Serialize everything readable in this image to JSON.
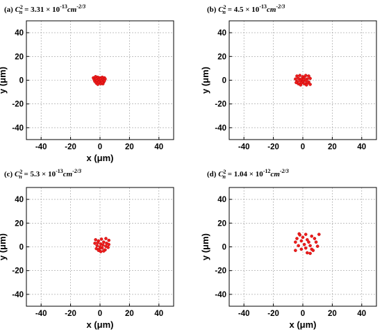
{
  "chart_data": [
    {
      "type": "scatter",
      "title_prefix": "(a)",
      "title_coef": "3.31",
      "title_exp": "-13",
      "title_unit_exp": "-2/3",
      "xlabel": "x (μm)",
      "ylabel": "y (μm)",
      "xlim": [
        -50,
        50
      ],
      "ylim": [
        -50,
        50
      ],
      "xticks": [
        -40,
        -20,
        0,
        20,
        40
      ],
      "yticks": [
        40,
        20,
        0,
        -20,
        -40
      ],
      "grid": true,
      "points": [
        [
          -4.5,
          2
        ],
        [
          -3,
          3
        ],
        [
          -1.5,
          2.5
        ],
        [
          0,
          2
        ],
        [
          1.5,
          2.5
        ],
        [
          3,
          2
        ],
        [
          -4,
          0.5
        ],
        [
          -2.5,
          1
        ],
        [
          -1,
          0.5
        ],
        [
          0.5,
          1
        ],
        [
          2,
          0.5
        ],
        [
          3.5,
          1
        ],
        [
          -3.5,
          -1
        ],
        [
          -2,
          -0.5
        ],
        [
          -0.5,
          -1
        ],
        [
          1,
          -0.5
        ],
        [
          2.5,
          -1.5
        ],
        [
          -2.5,
          -2.5
        ],
        [
          -1,
          -2
        ],
        [
          0.5,
          -3
        ],
        [
          2,
          -3
        ],
        [
          3,
          -0.5
        ],
        [
          -1.5,
          -3.5
        ],
        [
          1.5,
          -2
        ]
      ]
    },
    {
      "type": "scatter",
      "title_prefix": "(b)",
      "title_coef": "4.5",
      "title_exp": "-13",
      "title_unit_exp": "-2/3",
      "xlabel": "",
      "ylabel": "y (μm)",
      "xlim": [
        -50,
        50
      ],
      "ylim": [
        -50,
        50
      ],
      "xticks": [
        -40,
        -20,
        0,
        20,
        40
      ],
      "yticks": [
        40,
        20,
        0,
        -20,
        -40
      ],
      "grid": true,
      "points": [
        [
          -4,
          3.5
        ],
        [
          -2,
          4
        ],
        [
          0,
          3
        ],
        [
          2,
          4
        ],
        [
          4,
          3.5
        ],
        [
          -5,
          1
        ],
        [
          -3,
          1.5
        ],
        [
          -1,
          1
        ],
        [
          1,
          2
        ],
        [
          3,
          1
        ],
        [
          5,
          1.5
        ],
        [
          -4,
          -1
        ],
        [
          -2,
          -0.5
        ],
        [
          0,
          -1
        ],
        [
          2,
          -0.5
        ],
        [
          4,
          -1.5
        ],
        [
          -3,
          -3
        ],
        [
          -1,
          -2.5
        ],
        [
          1,
          -3
        ],
        [
          3,
          -2.5
        ],
        [
          5,
          -3.5
        ],
        [
          -4.5,
          -2
        ],
        [
          0.5,
          0.5
        ],
        [
          -1.5,
          -4
        ],
        [
          2.5,
          -4
        ]
      ]
    },
    {
      "type": "scatter",
      "title_prefix": "(c)",
      "title_coef": "5.3",
      "title_exp": "-13",
      "title_unit_exp": "-2/3",
      "xlabel": "x (μm)",
      "ylabel": "y (μm)",
      "xlim": [
        -50,
        50
      ],
      "ylim": [
        -50,
        50
      ],
      "xticks": [
        -40,
        -20,
        0,
        20,
        40
      ],
      "yticks": [
        40,
        20,
        0,
        -20,
        -40
      ],
      "grid": true,
      "points": [
        [
          -3,
          6
        ],
        [
          -1,
          5
        ],
        [
          1,
          6.5
        ],
        [
          4,
          7
        ],
        [
          6,
          5.5
        ],
        [
          -3.5,
          3
        ],
        [
          -1.5,
          3.5
        ],
        [
          0.5,
          2.5
        ],
        [
          2.5,
          4
        ],
        [
          4.5,
          3
        ],
        [
          6,
          2
        ],
        [
          -2,
          1
        ],
        [
          0,
          0
        ],
        [
          2,
          1.5
        ],
        [
          4,
          0.5
        ],
        [
          5.5,
          -0.5
        ],
        [
          -2.5,
          -1.5
        ],
        [
          -0.5,
          -2
        ],
        [
          1.5,
          -1
        ],
        [
          3.5,
          -2.5
        ],
        [
          0.5,
          -4
        ],
        [
          2.5,
          -3.5
        ],
        [
          -1,
          -3
        ]
      ]
    },
    {
      "type": "scatter",
      "title_prefix": "(d)",
      "title_coef": "1.04",
      "title_exp": "-12",
      "title_unit_exp": "-2/3",
      "xlabel": "x (μm)",
      "ylabel": "y (μm)",
      "xlim": [
        -50,
        50
      ],
      "ylim": [
        -50,
        50
      ],
      "xticks": [
        -40,
        -20,
        0,
        20,
        40
      ],
      "yticks": [
        40,
        20,
        0,
        -20,
        -40
      ],
      "grid": true,
      "points": [
        [
          -2.5,
          11
        ],
        [
          -2,
          10
        ],
        [
          2,
          10.5
        ],
        [
          6,
          9
        ],
        [
          11,
          10.5
        ],
        [
          -4,
          7
        ],
        [
          0,
          8
        ],
        [
          3,
          6
        ],
        [
          8,
          7
        ],
        [
          -5,
          4
        ],
        [
          -1,
          5
        ],
        [
          4,
          4
        ],
        [
          9,
          4
        ],
        [
          -3,
          1
        ],
        [
          1,
          2
        ],
        [
          5,
          1
        ],
        [
          10,
          0.5
        ],
        [
          -5,
          -3
        ],
        [
          -1,
          -2
        ],
        [
          2,
          -1
        ],
        [
          6,
          -2
        ],
        [
          3,
          -5
        ],
        [
          5,
          -5.5
        ],
        [
          7,
          -3
        ]
      ]
    }
  ]
}
